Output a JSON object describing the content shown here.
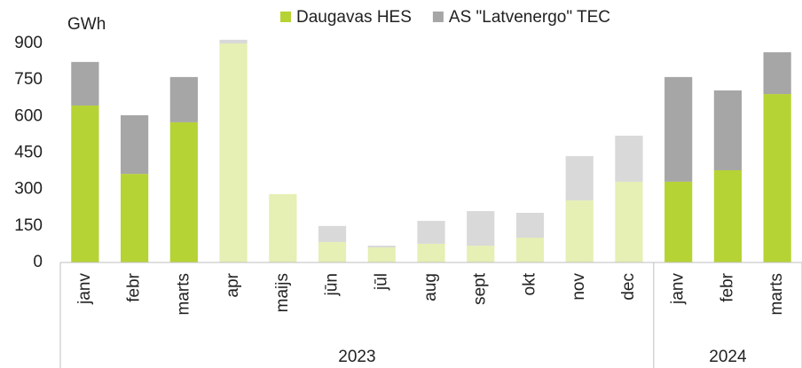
{
  "chart_data": {
    "type": "stacked_bar",
    "y_unit": "GWh",
    "groups": [
      {
        "label": "2023",
        "categories": [
          "janv",
          "febr",
          "marts",
          "apr",
          "maijs",
          "jūn",
          "jūl",
          "aug",
          "sept",
          "okt",
          "nov",
          "dec"
        ]
      },
      {
        "label": "2024",
        "categories": [
          "janv",
          "febr",
          "marts"
        ]
      }
    ],
    "series": [
      {
        "name": "Daugavas HES",
        "color": "#b5d334",
        "colors": [
          "#b5d334",
          "#b5d334",
          "#b5d334",
          "#e6efb4",
          "#e6efb4",
          "#e6efb4",
          "#e6efb4",
          "#e6efb4",
          "#e6efb4",
          "#e6efb4",
          "#e6efb4",
          "#e6efb4",
          "#b5d334",
          "#b5d334",
          "#b5d334"
        ],
        "values": [
          645,
          364,
          576,
          900,
          281,
          84,
          62,
          77,
          69,
          102,
          255,
          332,
          332,
          379,
          692
        ]
      },
      {
        "name": "AS \"Latvenergo\" TEC",
        "color": "#a6a6a6",
        "colors": [
          "#a6a6a6",
          "#a6a6a6",
          "#a6a6a6",
          "#d9d9d9",
          "#d9d9d9",
          "#d9d9d9",
          "#d9d9d9",
          "#d9d9d9",
          "#d9d9d9",
          "#d9d9d9",
          "#d9d9d9",
          "#d9d9d9",
          "#a6a6a6",
          "#a6a6a6",
          "#a6a6a6"
        ],
        "values": [
          179,
          241,
          186,
          15,
          0,
          66,
          7,
          94,
          142,
          102,
          182,
          189,
          430,
          328,
          172
        ]
      }
    ],
    "ylim": [
      0,
      900
    ],
    "yticks": [
      0,
      150,
      300,
      450,
      600,
      750,
      900
    ],
    "grid": false
  }
}
